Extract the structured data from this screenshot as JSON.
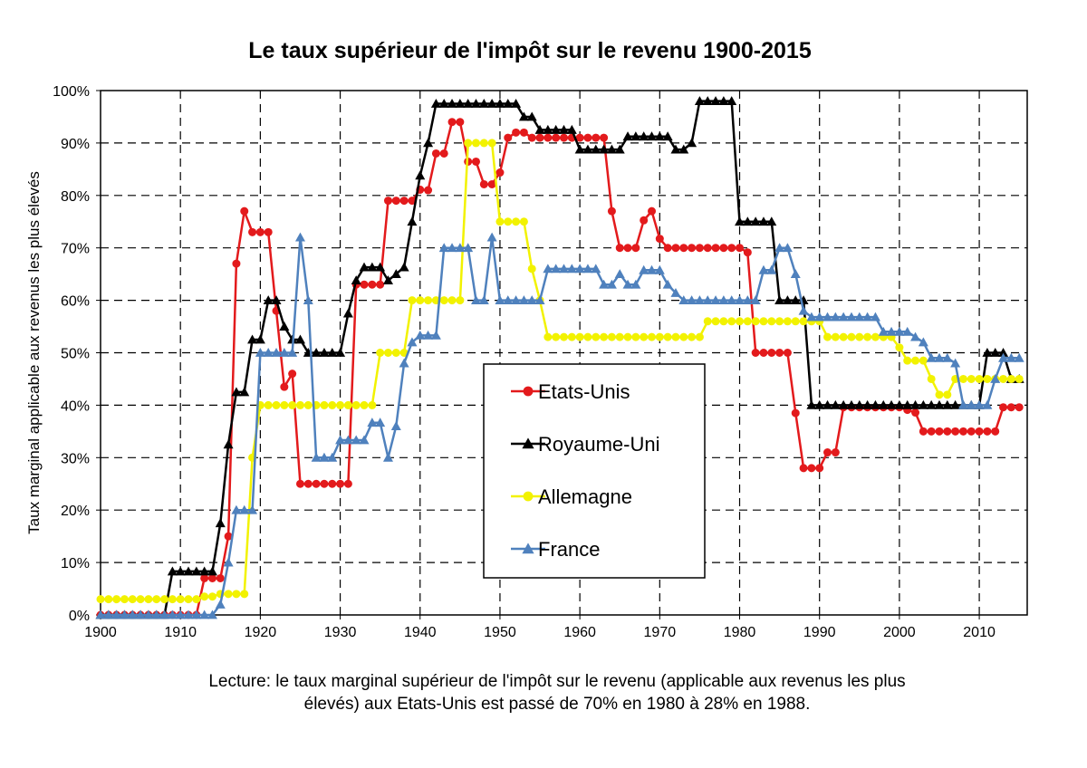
{
  "chart_data": {
    "type": "line",
    "title": "Le taux supérieur de l'impôt sur le revenu 1900-2015",
    "ylabel": "Taux marginal applicable aux revenus les plus élevés",
    "xlabel": "",
    "xlim": [
      1900,
      2016
    ],
    "ylim": [
      0,
      100
    ],
    "x_ticks": [
      "1900",
      "1910",
      "1920",
      "1930",
      "1940",
      "1950",
      "1960",
      "1970",
      "1980",
      "1990",
      "2000",
      "2010"
    ],
    "y_ticks": [
      "0%",
      "10%",
      "20%",
      "30%",
      "40%",
      "50%",
      "60%",
      "70%",
      "80%",
      "90%",
      "100%"
    ],
    "grid": true,
    "legend_position": "center-right",
    "series": [
      {
        "name": "Etats-Unis",
        "color": "#e31a1c",
        "marker": "circle",
        "points": [
          [
            1900,
            0
          ],
          [
            1912,
            0
          ],
          [
            1913,
            7
          ],
          [
            1915,
            7
          ],
          [
            1916,
            15
          ],
          [
            1917,
            67
          ],
          [
            1918,
            77
          ],
          [
            1919,
            73
          ],
          [
            1920,
            73
          ],
          [
            1921,
            73
          ],
          [
            1922,
            58
          ],
          [
            1923,
            43.5
          ],
          [
            1924,
            46
          ],
          [
            1925,
            25
          ],
          [
            1931,
            25
          ],
          [
            1932,
            63
          ],
          [
            1935,
            63
          ],
          [
            1936,
            79
          ],
          [
            1940,
            81.1
          ],
          [
            1941,
            81
          ],
          [
            1942,
            88
          ],
          [
            1943,
            88
          ],
          [
            1944,
            94
          ],
          [
            1945,
            94
          ],
          [
            1946,
            86.45
          ],
          [
            1947,
            86.45
          ],
          [
            1948,
            82.13
          ],
          [
            1949,
            82.13
          ],
          [
            1950,
            84.36
          ],
          [
            1951,
            91
          ],
          [
            1952,
            92
          ],
          [
            1953,
            92
          ],
          [
            1954,
            91
          ],
          [
            1963,
            91
          ],
          [
            1964,
            77
          ],
          [
            1965,
            70
          ],
          [
            1967,
            70
          ],
          [
            1968,
            75.25
          ],
          [
            1969,
            77
          ],
          [
            1970,
            71.75
          ],
          [
            1971,
            70
          ],
          [
            1981,
            69.13
          ],
          [
            1982,
            50
          ],
          [
            1986,
            50
          ],
          [
            1987,
            38.5
          ],
          [
            1988,
            28
          ],
          [
            1990,
            28
          ],
          [
            1991,
            31
          ],
          [
            1992,
            31
          ],
          [
            1993,
            39.6
          ],
          [
            2000,
            39.6
          ],
          [
            2001,
            39.1
          ],
          [
            2002,
            38.6
          ],
          [
            2003,
            35
          ],
          [
            2012,
            35
          ],
          [
            2013,
            39.6
          ],
          [
            2015,
            39.6
          ]
        ]
      },
      {
        "name": "Royaume-Uni",
        "color": "#000000",
        "marker": "triangle",
        "points": [
          [
            1900,
            0
          ],
          [
            1908,
            0
          ],
          [
            1909,
            8.3
          ],
          [
            1914,
            8.3
          ],
          [
            1915,
            17.5
          ],
          [
            1916,
            32.5
          ],
          [
            1917,
            42.5
          ],
          [
            1918,
            42.5
          ],
          [
            1919,
            52.5
          ],
          [
            1920,
            52.5
          ],
          [
            1921,
            60
          ],
          [
            1922,
            60
          ],
          [
            1923,
            55
          ],
          [
            1924,
            52.5
          ],
          [
            1925,
            52.5
          ],
          [
            1926,
            50
          ],
          [
            1930,
            50
          ],
          [
            1931,
            57.5
          ],
          [
            1932,
            63.8
          ],
          [
            1933,
            66.3
          ],
          [
            1935,
            66.3
          ],
          [
            1936,
            63.8
          ],
          [
            1937,
            65
          ],
          [
            1938,
            66.3
          ],
          [
            1939,
            75
          ],
          [
            1940,
            83.8
          ],
          [
            1941,
            90
          ],
          [
            1942,
            97.5
          ],
          [
            1952,
            97.5
          ],
          [
            1953,
            95
          ],
          [
            1954,
            95
          ],
          [
            1955,
            92.5
          ],
          [
            1959,
            92.5
          ],
          [
            1960,
            88.75
          ],
          [
            1965,
            88.75
          ],
          [
            1966,
            91.25
          ],
          [
            1971,
            91.25
          ],
          [
            1972,
            88.75
          ],
          [
            1973,
            88.75
          ],
          [
            1974,
            90
          ],
          [
            1975,
            98
          ],
          [
            1979,
            98
          ],
          [
            1980,
            75
          ],
          [
            1983,
            75
          ],
          [
            1984,
            75
          ],
          [
            1985,
            60
          ],
          [
            1988,
            60
          ],
          [
            1989,
            40
          ],
          [
            2009,
            40
          ],
          [
            2010,
            40
          ],
          [
            2011,
            50
          ],
          [
            2013,
            50
          ],
          [
            2014,
            45
          ],
          [
            2015,
            45
          ]
        ]
      },
      {
        "name": "Allemagne",
        "color": "#f2f200",
        "marker": "circle",
        "points": [
          [
            1900,
            3
          ],
          [
            1912,
            3
          ],
          [
            1913,
            3.5
          ],
          [
            1915,
            4
          ],
          [
            1918,
            4
          ],
          [
            1919,
            30
          ],
          [
            1920,
            40
          ],
          [
            1934,
            40
          ],
          [
            1935,
            50
          ],
          [
            1938,
            50
          ],
          [
            1939,
            60
          ],
          [
            1945,
            60
          ],
          [
            1946,
            90
          ],
          [
            1949,
            90
          ],
          [
            1950,
            75
          ],
          [
            1953,
            75
          ],
          [
            1954,
            66
          ],
          [
            1955,
            60
          ],
          [
            1956,
            53
          ],
          [
            1975,
            53
          ],
          [
            1976,
            56
          ],
          [
            1990,
            56
          ],
          [
            1991,
            53
          ],
          [
            1999,
            53
          ],
          [
            2000,
            51
          ],
          [
            2001,
            48.5
          ],
          [
            2003,
            48.5
          ],
          [
            2004,
            45
          ],
          [
            2005,
            42
          ],
          [
            2006,
            42
          ],
          [
            2007,
            45
          ],
          [
            2015,
            45
          ]
        ]
      },
      {
        "name": "France",
        "color": "#4f81bd",
        "marker": "triangle",
        "points": [
          [
            1900,
            0
          ],
          [
            1914,
            0
          ],
          [
            1915,
            2
          ],
          [
            1916,
            10
          ],
          [
            1917,
            20
          ],
          [
            1919,
            20
          ],
          [
            1920,
            50
          ],
          [
            1924,
            50
          ],
          [
            1925,
            72
          ],
          [
            1926,
            60
          ],
          [
            1927,
            30
          ],
          [
            1929,
            30
          ],
          [
            1930,
            33.33
          ],
          [
            1933,
            33.33
          ],
          [
            1934,
            36.67
          ],
          [
            1935,
            36.67
          ],
          [
            1936,
            30
          ],
          [
            1937,
            36
          ],
          [
            1938,
            48
          ],
          [
            1939,
            52
          ],
          [
            1940,
            53.3
          ],
          [
            1942,
            53.3
          ],
          [
            1943,
            70
          ],
          [
            1946,
            70
          ],
          [
            1947,
            60
          ],
          [
            1948,
            60
          ],
          [
            1949,
            72
          ],
          [
            1950,
            60
          ],
          [
            1955,
            60
          ],
          [
            1956,
            66
          ],
          [
            1962,
            66
          ],
          [
            1963,
            63
          ],
          [
            1964,
            63
          ],
          [
            1965,
            65
          ],
          [
            1966,
            63
          ],
          [
            1967,
            63
          ],
          [
            1968,
            65.75
          ],
          [
            1970,
            65.75
          ],
          [
            1971,
            63
          ],
          [
            1972,
            61.4
          ],
          [
            1973,
            60
          ],
          [
            1974,
            60
          ],
          [
            1982,
            60
          ],
          [
            1983,
            65.75
          ],
          [
            1984,
            65.75
          ],
          [
            1985,
            70
          ],
          [
            1986,
            70
          ],
          [
            1987,
            65
          ],
          [
            1988,
            58
          ],
          [
            1989,
            56.8
          ],
          [
            1997,
            56.8
          ],
          [
            1998,
            54
          ],
          [
            2001,
            54
          ],
          [
            2002,
            53
          ],
          [
            2003,
            52
          ],
          [
            2004,
            49
          ],
          [
            2007,
            48
          ],
          [
            2008,
            40
          ],
          [
            2011,
            40
          ],
          [
            2012,
            45
          ],
          [
            2013,
            49
          ],
          [
            2015,
            49
          ]
        ]
      }
    ]
  },
  "note": {
    "line1": "Lecture: le taux marginal supérieur de l'impôt sur le revenu (applicable aux revenus les plus",
    "line2": "élevés) aux Etats-Unis est passé de 70% en 1980 à 28% en 1988."
  }
}
